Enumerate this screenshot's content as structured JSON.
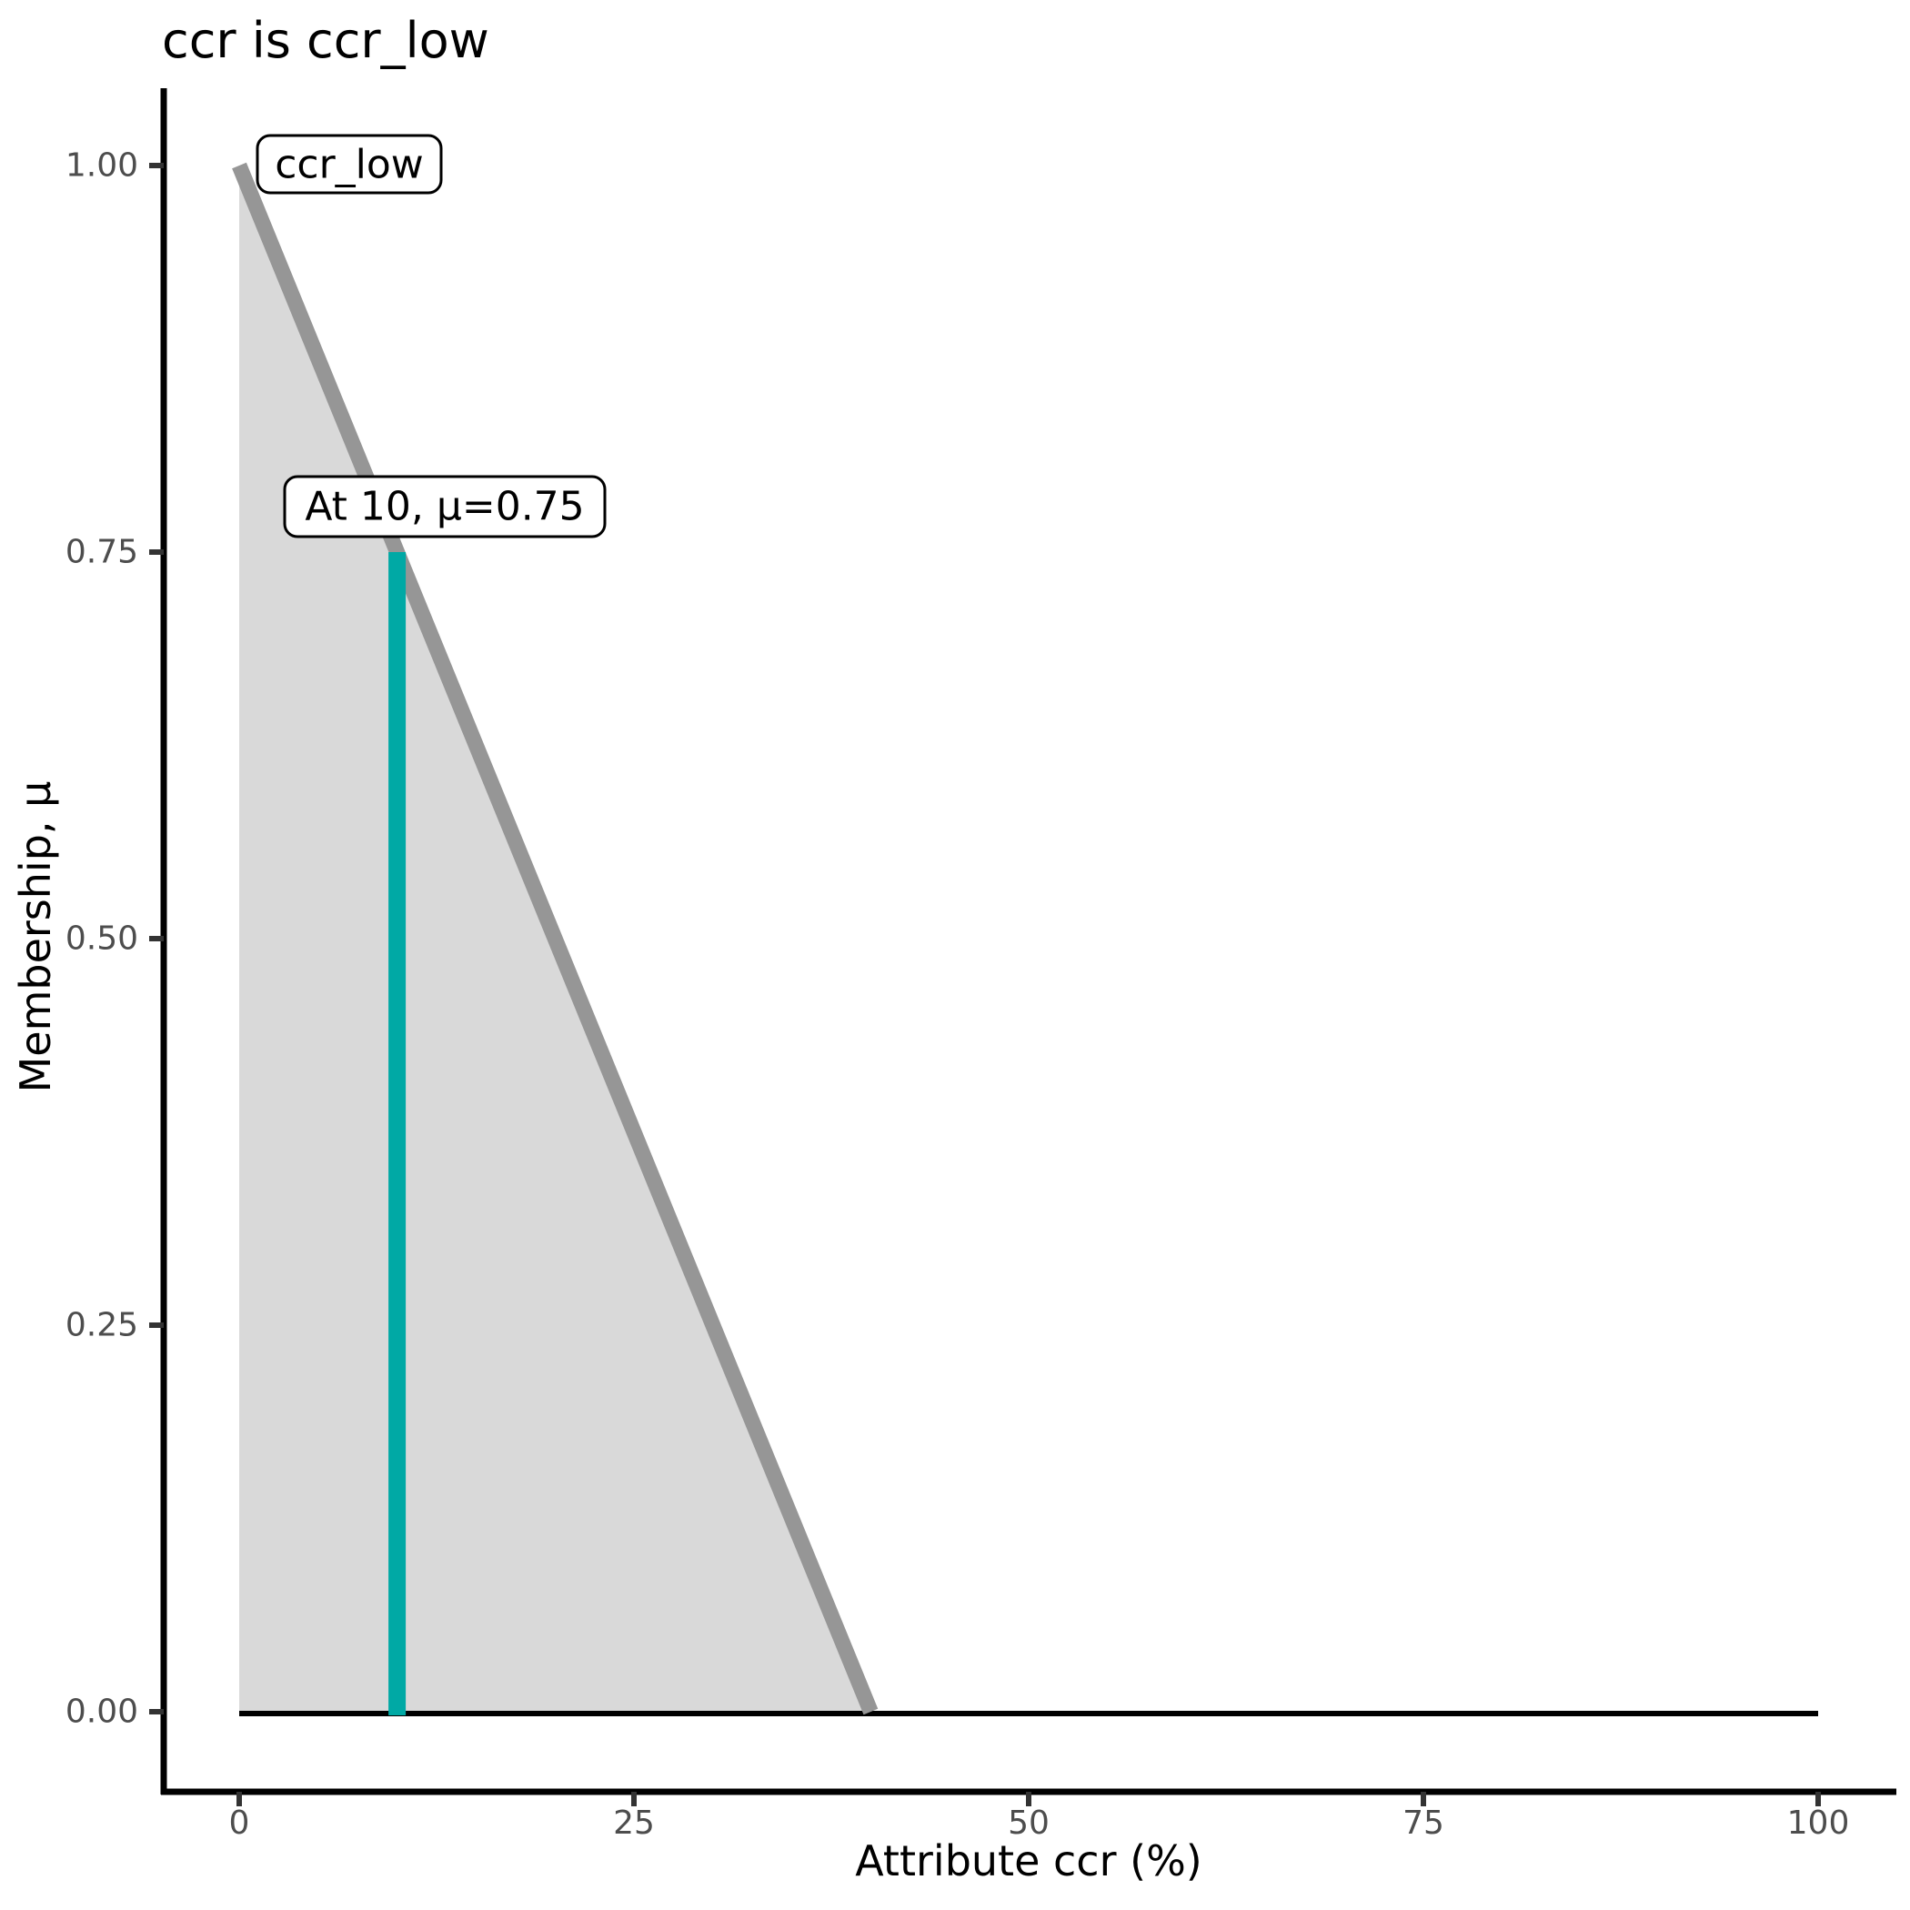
{
  "chart_data": {
    "type": "area",
    "title": "ccr is ccr_low",
    "xlabel": "Attribute ccr (%)",
    "ylabel": "Membership, μ",
    "xlim": [
      0,
      100
    ],
    "ylim": [
      0,
      1
    ],
    "grid": false,
    "legend": "none",
    "x_ticks": [
      {
        "v": 0,
        "label": "0"
      },
      {
        "v": 25,
        "label": "25"
      },
      {
        "v": 50,
        "label": "50"
      },
      {
        "v": 75,
        "label": "75"
      },
      {
        "v": 100,
        "label": "100"
      }
    ],
    "y_ticks": [
      {
        "v": 0.0,
        "label": "0.00"
      },
      {
        "v": 0.25,
        "label": "0.25"
      },
      {
        "v": 0.5,
        "label": "0.50"
      },
      {
        "v": 0.75,
        "label": "0.75"
      },
      {
        "v": 1.0,
        "label": "1.00"
      }
    ],
    "fuzzy_set": {
      "name": "ccr_low",
      "line_points": [
        [
          0,
          1
        ],
        [
          40,
          0
        ]
      ],
      "fill_points": [
        [
          0,
          0
        ],
        [
          0,
          1
        ],
        [
          40,
          0
        ]
      ],
      "fill_color": "#D9D9D9",
      "line_color": "#969696"
    },
    "baseline": {
      "y": 0,
      "x_start": 0,
      "x_end": 100,
      "color": "#000000"
    },
    "highlight": {
      "x": 10,
      "mu": 0.75,
      "color": "#00A9A5",
      "label": "At 10, μ=0.75"
    },
    "set_label": {
      "text": "ccr_low",
      "anchor_x": 0,
      "anchor_y": 1
    },
    "colors": {
      "tick_label": "#4D4D4D",
      "axis_line": "#000000",
      "tick_mark": "#333333",
      "text": "#000000",
      "label_box_fill": "#FFFFFF",
      "label_box_border": "#000000"
    }
  }
}
